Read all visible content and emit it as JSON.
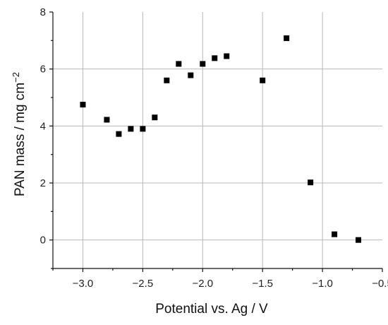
{
  "chart_data": {
    "type": "scatter",
    "xlabel": "Potential vs. Ag / V",
    "ylabel_main": "PAN mass / mg cm",
    "ylabel_sup": "−2",
    "xlim": [
      -3.25,
      -0.5
    ],
    "ylim": [
      -1,
      8
    ],
    "xticks": [
      -3.0,
      -2.5,
      -2.0,
      -1.5,
      -1.0,
      -0.5
    ],
    "xtick_labels": [
      "−3.0",
      "−2.5",
      "−2.0",
      "−1.5",
      "−1.0",
      "−0.5"
    ],
    "yticks": [
      0,
      2,
      4,
      6,
      8
    ],
    "ytick_labels": [
      "0",
      "2",
      "4",
      "6",
      "8"
    ],
    "grid": true,
    "marker": "square",
    "marker_color": "#000000",
    "series": [
      {
        "x": [
          -3.0,
          -2.8,
          -2.7,
          -2.6,
          -2.5,
          -2.4,
          -2.3,
          -2.2,
          -2.1,
          -2.0,
          -1.9,
          -1.8,
          -1.5,
          -1.3,
          -1.1,
          -0.9,
          -0.7
        ],
        "y": [
          4.75,
          4.22,
          3.72,
          3.9,
          3.9,
          4.3,
          5.6,
          6.18,
          5.78,
          6.18,
          6.38,
          6.45,
          5.6,
          7.08,
          2.02,
          0.2,
          0.0
        ]
      }
    ]
  }
}
